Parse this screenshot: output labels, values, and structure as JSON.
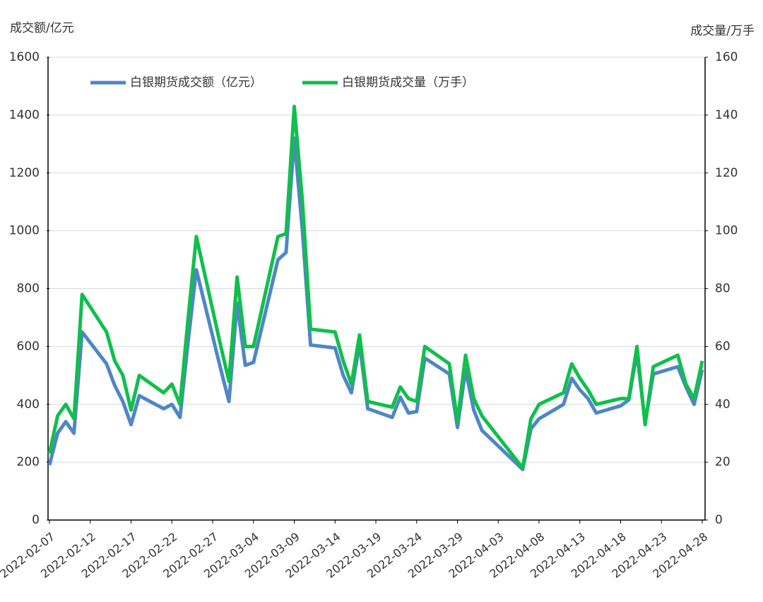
{
  "chart_data": {
    "type": "line",
    "y_axis_title": "成交额/亿元",
    "y2_axis_title": "成交量/万手",
    "x": [
      "2022-02-07",
      "2022-02-08",
      "2022-02-09",
      "2022-02-10",
      "2022-02-11",
      "2022-02-14",
      "2022-02-15",
      "2022-02-16",
      "2022-02-17",
      "2022-02-18",
      "2022-02-21",
      "2022-02-22",
      "2022-02-23",
      "2022-02-24",
      "2022-02-25",
      "2022-02-28",
      "2022-03-01",
      "2022-03-02",
      "2022-03-03",
      "2022-03-04",
      "2022-03-07",
      "2022-03-08",
      "2022-03-09",
      "2022-03-10",
      "2022-03-11",
      "2022-03-14",
      "2022-03-15",
      "2022-03-16",
      "2022-03-17",
      "2022-03-18",
      "2022-03-21",
      "2022-03-22",
      "2022-03-23",
      "2022-03-24",
      "2022-03-25",
      "2022-03-28",
      "2022-03-29",
      "2022-03-30",
      "2022-03-31",
      "2022-04-01",
      "2022-04-06",
      "2022-04-07",
      "2022-04-08",
      "2022-04-11",
      "2022-04-12",
      "2022-04-13",
      "2022-04-14",
      "2022-04-15",
      "2022-04-18",
      "2022-04-19",
      "2022-04-20",
      "2022-04-21",
      "2022-04-22",
      "2022-04-25",
      "2022-04-26",
      "2022-04-27",
      "2022-04-28"
    ],
    "series": [
      {
        "name": "白银期货成交额（亿元）",
        "color": "#4f86c6",
        "values": [
          190,
          300,
          340,
          300,
          650,
          540,
          465,
          410,
          330,
          430,
          385,
          400,
          355,
          620,
          865,
          520,
          410,
          750,
          535,
          545,
          900,
          925,
          1320,
          1000,
          605,
          595,
          500,
          440,
          610,
          385,
          355,
          425,
          370,
          375,
          560,
          505,
          320,
          520,
          380,
          310,
          175,
          315,
          350,
          400,
          490,
          450,
          420,
          370,
          395,
          415,
          580,
          335,
          505,
          530,
          460,
          400,
          520
        ]
      },
      {
        "name": "白银期货成交量（万手）",
        "color": "#10bf4c",
        "axis": "y2",
        "values": [
          23,
          36,
          40,
          35,
          78,
          65,
          55,
          50,
          38,
          50,
          44,
          47,
          40,
          70,
          98,
          60,
          48,
          84,
          60,
          60,
          98,
          99,
          143,
          110,
          66,
          65,
          55,
          47,
          64,
          41,
          39,
          46,
          42,
          41,
          60,
          54,
          34,
          57,
          42,
          36,
          18,
          35,
          40,
          44,
          54,
          49,
          45,
          40,
          42,
          42,
          60,
          33,
          53,
          57,
          47,
          42,
          55
        ]
      }
    ],
    "xlim": [
      "2022-02-07",
      "2022-04-28"
    ],
    "xticks": [
      "2022-02-07",
      "2022-02-12",
      "2022-02-17",
      "2022-02-22",
      "2022-02-27",
      "2022-03-04",
      "2022-03-09",
      "2022-03-14",
      "2022-03-19",
      "2022-03-24",
      "2022-03-29",
      "2022-04-03",
      "2022-04-08",
      "2022-04-13",
      "2022-04-18",
      "2022-04-23",
      "2022-04-28"
    ],
    "ylim": [
      0,
      1600
    ],
    "yticks": [
      0,
      200,
      400,
      600,
      800,
      1000,
      1200,
      1400,
      1600
    ],
    "y2lim": [
      0,
      160
    ],
    "y2ticks": [
      0,
      20,
      40,
      60,
      80,
      100,
      120,
      140,
      160
    ],
    "grid": true
  }
}
